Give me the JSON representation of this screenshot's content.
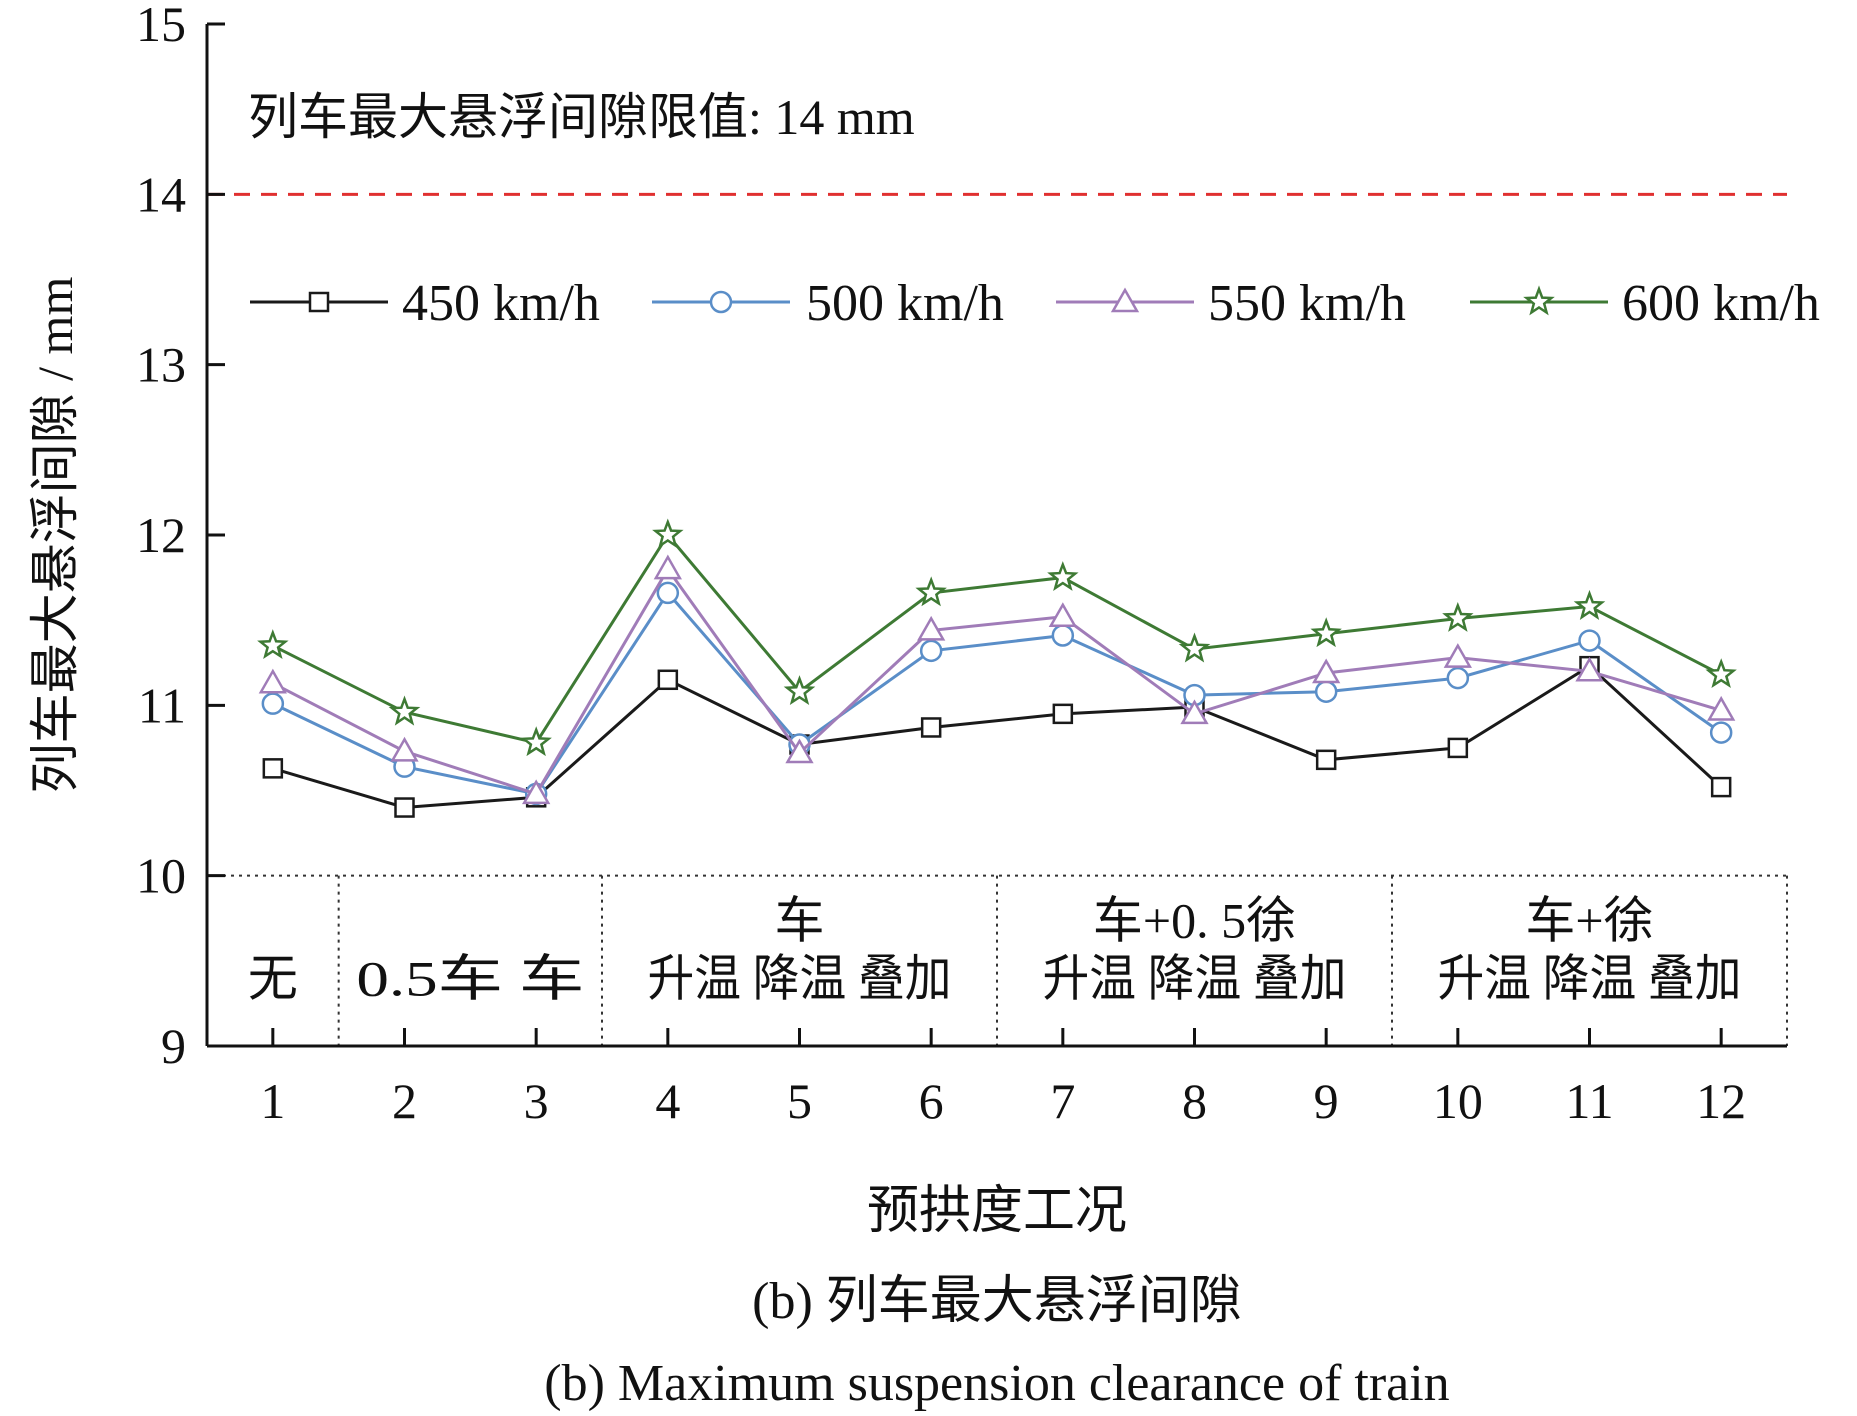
{
  "chart_data": {
    "type": "line",
    "x": [
      1,
      2,
      3,
      4,
      5,
      6,
      7,
      8,
      9,
      10,
      11,
      12
    ],
    "xlim": [
      0.5,
      12.5
    ],
    "ylim": [
      9,
      15
    ],
    "yticks": [
      9,
      10,
      11,
      12,
      13,
      14,
      15
    ],
    "ylabel": "列车最大悬浮间隙 / mm",
    "xlabel": "预拱度工况",
    "grid": false,
    "legend_position": "top, horizontal",
    "series": [
      {
        "name": "450 km/h",
        "color": "#1a1a1a",
        "marker": "square",
        "values": [
          10.63,
          10.4,
          10.46,
          11.15,
          10.77,
          10.87,
          10.95,
          10.99,
          10.68,
          10.75,
          11.23,
          10.52
        ]
      },
      {
        "name": "500 km/h",
        "color": "#5a8ec8",
        "marker": "circle",
        "values": [
          11.01,
          10.64,
          10.48,
          11.66,
          10.77,
          11.32,
          11.41,
          11.06,
          11.08,
          11.16,
          11.38,
          10.84
        ]
      },
      {
        "name": "550 km/h",
        "color": "#a07cb8",
        "marker": "triangle",
        "values": [
          11.13,
          10.73,
          10.48,
          11.8,
          10.72,
          11.44,
          11.52,
          10.95,
          11.19,
          11.28,
          11.2,
          10.97
        ]
      },
      {
        "name": "600 km/h",
        "color": "#3e7a34",
        "marker": "star",
        "values": [
          11.35,
          10.96,
          10.78,
          12.0,
          11.08,
          11.66,
          11.75,
          11.33,
          11.42,
          11.51,
          11.58,
          11.18
        ]
      }
    ],
    "reference_line": {
      "value": 14,
      "color": "#e03030",
      "style": "dashed",
      "label": "列车最大悬浮间隙限值: 14 mm"
    },
    "groups": [
      {
        "top": "",
        "bottom": "无",
        "x_start": 0.5,
        "x_end": 1.5
      },
      {
        "top": "",
        "bottom": "0.5车 车",
        "x_start": 1.5,
        "x_end": 3.5
      },
      {
        "top": "车",
        "bottom": "升温 降温 叠加",
        "x_start": 3.5,
        "x_end": 6.5
      },
      {
        "top": "车+0. 5徐",
        "bottom": "升温 降温 叠加",
        "x_start": 6.5,
        "x_end": 9.5
      },
      {
        "top": "车+徐",
        "bottom": "升温 降温 叠加",
        "x_start": 9.5,
        "x_end": 12.5
      }
    ],
    "group_band_ylim": [
      9,
      10
    ],
    "caption_cn": "(b) 列车最大悬浮间隙",
    "caption_en": "(b) Maximum suspension clearance of train"
  }
}
